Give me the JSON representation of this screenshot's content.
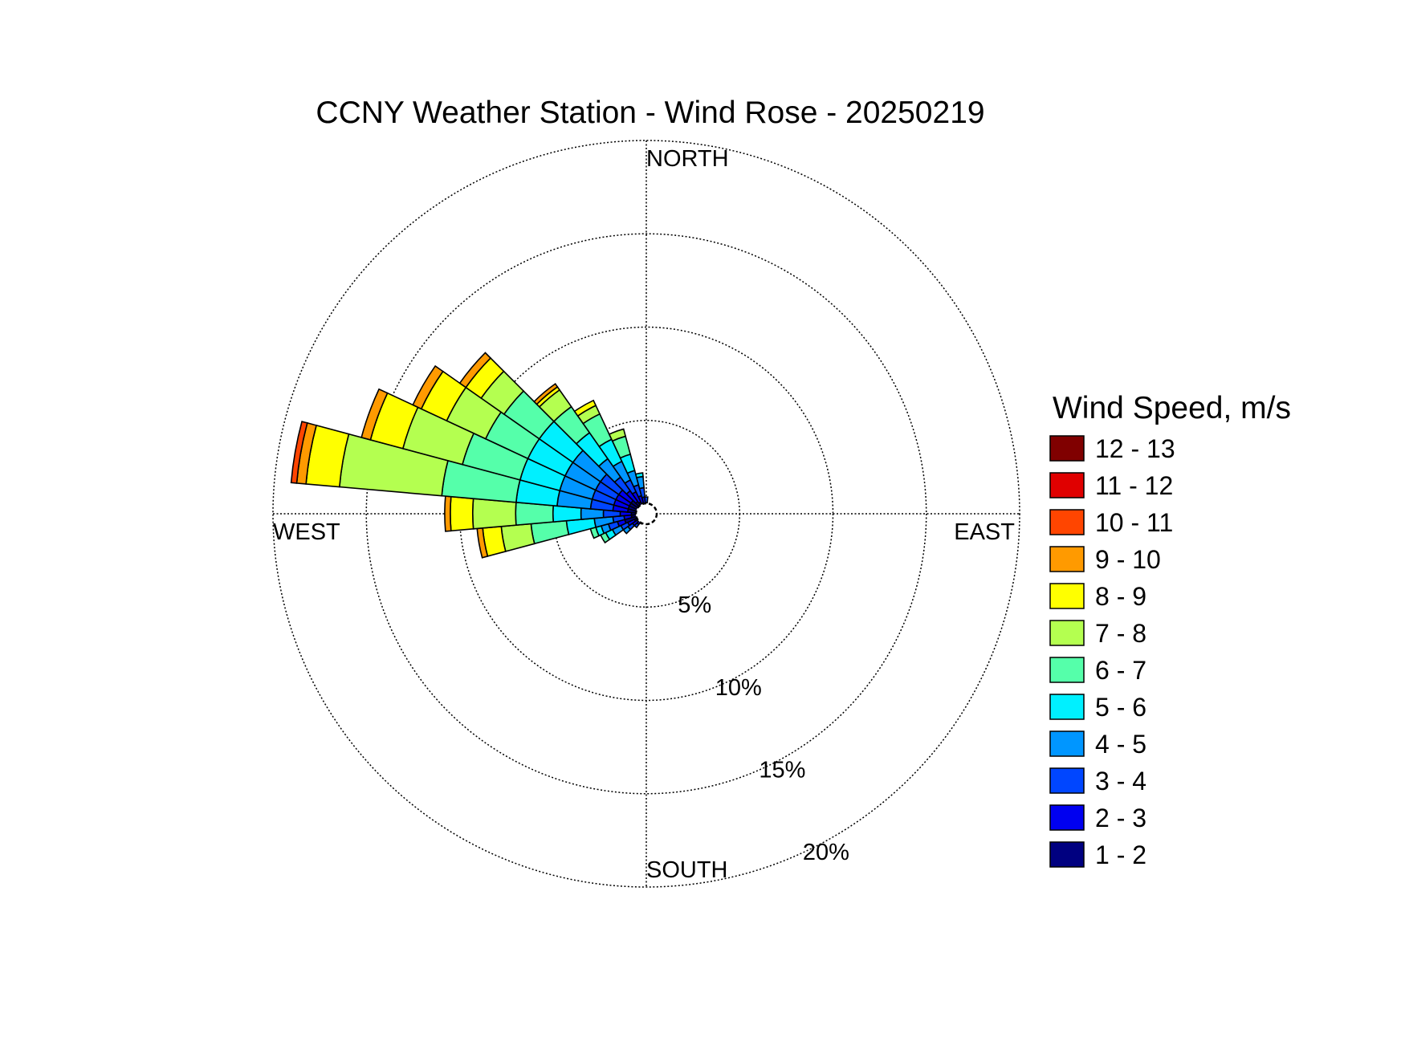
{
  "chart_data": {
    "type": "windrose",
    "title": "CCNY Weather Station - Wind Rose - 20250219",
    "direction_labels": {
      "north": "NORTH",
      "east": "EAST",
      "south": "SOUTH",
      "west": "WEST"
    },
    "radial_ticks": [
      {
        "value": 5,
        "label": "5%"
      },
      {
        "value": 10,
        "label": "10%"
      },
      {
        "value": 15,
        "label": "15%"
      },
      {
        "value": 20,
        "label": "20%"
      }
    ],
    "radial_max": 20,
    "grid": true,
    "legend": {
      "title": "Wind Speed, m/s",
      "position": "right",
      "bins": [
        {
          "label": "12 - 13",
          "color": "#800000"
        },
        {
          "label": "11 - 12",
          "color": "#e00000"
        },
        {
          "label": "10 - 11",
          "color": "#ff4500"
        },
        {
          "label": "9 - 10",
          "color": "#ff9a00"
        },
        {
          "label": "8 - 9",
          "color": "#ffff00"
        },
        {
          "label": "7 - 8",
          "color": "#b4ff50"
        },
        {
          "label": "6 - 7",
          "color": "#55ffaa"
        },
        {
          "label": "5 - 6",
          "color": "#00f0ff"
        },
        {
          "label": "4 - 5",
          "color": "#0096ff"
        },
        {
          "label": "3 - 4",
          "color": "#0046ff"
        },
        {
          "label": "2 - 3",
          "color": "#0000f0"
        },
        {
          "label": "1 - 2",
          "color": "#000080"
        }
      ]
    },
    "bin_colors_low_to_high": [
      "#000080",
      "#0000f0",
      "#0046ff",
      "#0096ff",
      "#00f0ff",
      "#55ffaa",
      "#b4ff50",
      "#ffff00",
      "#ff9a00",
      "#ff4500",
      "#e00000",
      "#800000"
    ],
    "sector_width_deg": 10,
    "sectors": [
      {
        "direction_deg": 250,
        "cumulative": [
          1.2,
          1.6,
          2.1,
          2.5,
          2.8,
          3.1
        ]
      },
      {
        "direction_deg": 260,
        "cumulative": [
          0.8,
          1.2,
          1.8,
          2.8,
          4.3,
          6.2,
          7.8,
          8.8,
          9.1
        ]
      },
      {
        "direction_deg": 270,
        "cumulative": [
          0.8,
          1.4,
          2.3,
          3.5,
          5.0,
          7.0,
          9.3,
          10.5,
          10.8
        ]
      },
      {
        "direction_deg": 280,
        "cumulative": [
          1.0,
          1.8,
          3.0,
          4.8,
          7.0,
          11.0,
          16.5,
          18.3,
          18.8,
          19.1
        ]
      },
      {
        "direction_deg": 290,
        "cumulative": [
          1.0,
          1.8,
          3.0,
          4.8,
          7.0,
          10.2,
          13.5,
          15.3,
          15.8
        ]
      },
      {
        "direction_deg": 300,
        "cumulative": [
          1.0,
          1.8,
          3.0,
          4.8,
          7.0,
          9.5,
          11.8,
          13.3,
          13.8
        ]
      },
      {
        "direction_deg": 310,
        "cumulative": [
          1.0,
          1.8,
          3.0,
          4.8,
          7.0,
          9.3,
          10.8,
          11.8,
          12.2
        ]
      },
      {
        "direction_deg": 320,
        "cumulative": [
          0.8,
          1.5,
          2.4,
          3.6,
          5.3,
          7.0,
          8.1,
          8.3,
          8.5
        ]
      },
      {
        "direction_deg": 330,
        "cumulative": [
          0.7,
          1.3,
          2.0,
          3.1,
          4.4,
          5.9,
          6.4,
          6.7
        ]
      },
      {
        "direction_deg": 340,
        "cumulative": [
          0.6,
          1.0,
          1.6,
          2.4,
          3.3,
          4.3,
          4.7
        ]
      },
      {
        "direction_deg": 350,
        "cumulative": [
          0.5,
          0.9,
          1.4,
          2.0,
          2.2
        ]
      },
      {
        "direction_deg": 0,
        "cumulative": [
          0.3,
          0.6,
          0.9
        ]
      },
      {
        "direction_deg": 240,
        "cumulative": [
          0.7,
          1.1,
          1.5,
          2.0,
          2.4,
          2.7
        ]
      },
      {
        "direction_deg": 230,
        "cumulative": [
          0.6,
          0.9,
          1.2,
          1.5
        ]
      },
      {
        "direction_deg": 220,
        "cumulative": [
          0.5,
          0.7,
          0.9
        ]
      },
      {
        "direction_deg": 210,
        "cumulative": [
          0.4,
          0.6
        ]
      },
      {
        "direction_deg": 200,
        "cumulative": [
          0.3
        ]
      }
    ]
  }
}
